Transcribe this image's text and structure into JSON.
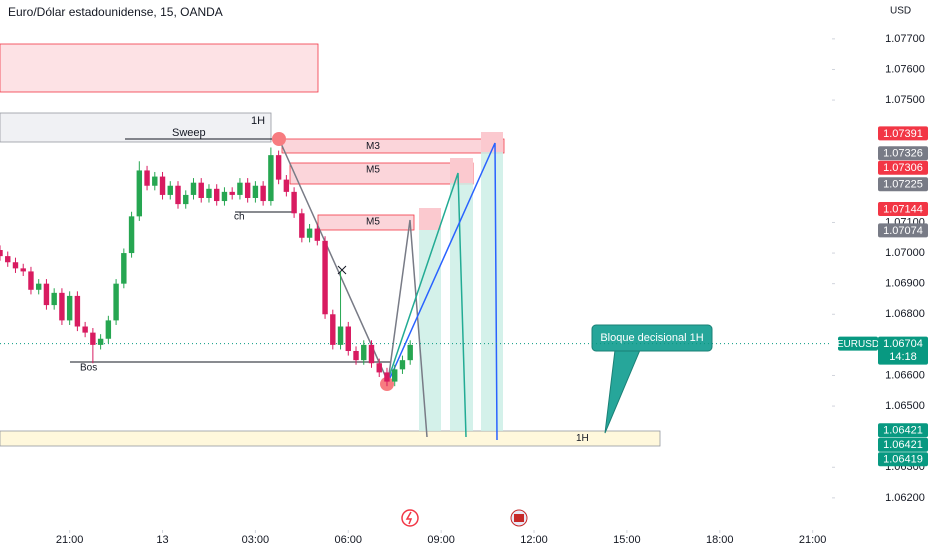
{
  "header": {
    "title": "Euro/Dólar estadounidense, 15, OANDA",
    "currency": "USD"
  },
  "chart_data": {
    "type": "candlestick",
    "up_color": "#26a651",
    "down_color": "#d81b60",
    "x": [
      -9,
      -8,
      -7,
      -6,
      -5,
      -4,
      -3,
      -2,
      -1,
      0,
      1,
      2,
      3,
      4,
      5,
      6,
      7,
      8,
      9,
      10,
      11,
      12,
      13,
      14,
      15,
      16,
      17,
      18,
      19,
      20,
      21,
      22,
      23,
      24,
      25,
      26,
      27,
      28,
      29,
      30,
      31,
      32,
      33,
      34,
      35,
      36,
      37,
      38,
      39,
      40,
      41,
      42,
      43,
      44
    ],
    "ohlc": [
      [
        1.0701,
        1.07025,
        1.06975,
        1.0699
      ],
      [
        1.0699,
        1.07005,
        1.06955,
        1.0697
      ],
      [
        1.0697,
        1.06985,
        1.06935,
        1.0695
      ],
      [
        1.0695,
        1.06965,
        1.06925,
        1.0694
      ],
      [
        1.0694,
        1.06955,
        1.06865,
        1.0688
      ],
      [
        1.0688,
        1.06915,
        1.06865,
        1.069
      ],
      [
        1.069,
        1.06915,
        1.06815,
        1.0683
      ],
      [
        1.0683,
        1.06885,
        1.06815,
        1.0687
      ],
      [
        1.0687,
        1.06885,
        1.06765,
        1.0678
      ],
      [
        1.0678,
        1.06875,
        1.06765,
        1.0686
      ],
      [
        1.0686,
        1.06875,
        1.06745,
        1.0676
      ],
      [
        1.0676,
        1.06775,
        1.06725,
        1.0674
      ],
      [
        1.0674,
        1.06755,
        1.0664,
        1.067
      ],
      [
        1.067,
        1.06735,
        1.06685,
        1.0672
      ],
      [
        1.0672,
        1.06795,
        1.06705,
        1.0678
      ],
      [
        1.0678,
        1.06915,
        1.06765,
        1.069
      ],
      [
        1.069,
        1.07015,
        1.06885,
        1.07
      ],
      [
        1.07,
        1.07135,
        1.06985,
        1.0712
      ],
      [
        1.0712,
        1.073,
        1.07105,
        1.0727
      ],
      [
        1.0727,
        1.07285,
        1.07205,
        1.0722
      ],
      [
        1.0722,
        1.07265,
        1.07205,
        1.0725
      ],
      [
        1.0725,
        1.07265,
        1.07175,
        1.0719
      ],
      [
        1.0719,
        1.07235,
        1.07175,
        1.0722
      ],
      [
        1.0722,
        1.07235,
        1.07145,
        1.0716
      ],
      [
        1.0716,
        1.07205,
        1.07145,
        1.0719
      ],
      [
        1.0719,
        1.07245,
        1.07175,
        1.0723
      ],
      [
        1.0723,
        1.07245,
        1.07165,
        1.0718
      ],
      [
        1.0718,
        1.07225,
        1.07165,
        1.0721
      ],
      [
        1.0721,
        1.07225,
        1.07155,
        1.0717
      ],
      [
        1.0717,
        1.07215,
        1.07155,
        1.072
      ],
      [
        1.072,
        1.07215,
        1.07175,
        1.0719
      ],
      [
        1.0719,
        1.07245,
        1.07175,
        1.0723
      ],
      [
        1.0723,
        1.07245,
        1.07165,
        1.0718
      ],
      [
        1.0718,
        1.07235,
        1.07165,
        1.0722
      ],
      [
        1.0722,
        1.07235,
        1.07155,
        1.0717
      ],
      [
        1.0717,
        1.07345,
        1.07155,
        1.0732
      ],
      [
        1.0732,
        1.07335,
        1.07225,
        1.0724
      ],
      [
        1.0724,
        1.07255,
        1.07185,
        1.072
      ],
      [
        1.072,
        1.07215,
        1.07115,
        1.0713
      ],
      [
        1.0713,
        1.07145,
        1.07035,
        1.0705
      ],
      [
        1.0705,
        1.07095,
        1.07035,
        1.0708
      ],
      [
        1.0708,
        1.07095,
        1.07025,
        1.0704
      ],
      [
        1.0704,
        1.07055,
        1.06785,
        1.068
      ],
      [
        1.068,
        1.06815,
        1.06685,
        1.067
      ],
      [
        1.067,
        1.0694,
        1.06685,
        1.0676
      ],
      [
        1.0676,
        1.06775,
        1.06665,
        1.0668
      ],
      [
        1.0668,
        1.06695,
        1.06635,
        1.0665
      ],
      [
        1.0665,
        1.06715,
        1.06635,
        1.067
      ],
      [
        1.067,
        1.06715,
        1.06625,
        1.0664
      ],
      [
        1.0664,
        1.06655,
        1.06595,
        1.0661
      ],
      [
        1.0661,
        1.06625,
        1.06565,
        1.0658
      ],
      [
        1.0658,
        1.06635,
        1.06565,
        1.0662
      ],
      [
        1.0662,
        1.06665,
        1.06605,
        1.0665
      ],
      [
        1.0665,
        1.06715,
        1.06635,
        1.067
      ]
    ],
    "xlim": [
      -9,
      98.5
    ],
    "xticks": [
      {
        "value": 0,
        "label": "21:00"
      },
      {
        "value": 12,
        "label": "13"
      },
      {
        "value": 24,
        "label": "03:00"
      },
      {
        "value": 36,
        "label": "06:00"
      },
      {
        "value": 48,
        "label": "09:00"
      },
      {
        "value": 60,
        "label": "12:00"
      },
      {
        "value": 72,
        "label": "15:00"
      },
      {
        "value": 84,
        "label": "18:00"
      },
      {
        "value": 96,
        "label": "21:00"
      }
    ],
    "ylim": [
      1.06095,
      1.07827
    ],
    "yticks": [
      {
        "value": 1.077,
        "label": "1.07700"
      },
      {
        "value": 1.076,
        "label": "1.07600"
      },
      {
        "value": 1.075,
        "label": "1.07500"
      },
      {
        "value": 1.071,
        "label": "1.07100"
      },
      {
        "value": 1.07,
        "label": "1.07000"
      },
      {
        "value": 1.069,
        "label": "1.06900"
      },
      {
        "value": 1.068,
        "label": "1.06800"
      },
      {
        "value": 1.066,
        "label": "1.06600"
      },
      {
        "value": 1.065,
        "label": "1.06500"
      },
      {
        "value": 1.063,
        "label": "1.06300"
      },
      {
        "value": 1.062,
        "label": "1.06200"
      }
    ],
    "grid": false,
    "price_tags": [
      {
        "value": 1.07391,
        "color": "#f23645"
      },
      {
        "value": 1.07326,
        "color": "#787b86"
      },
      {
        "value": 1.07306,
        "color": "#f23645"
      },
      {
        "value": 1.07225,
        "color": "#787b86"
      },
      {
        "value": 1.07144,
        "color": "#f23645"
      },
      {
        "value": 1.07074,
        "color": "#787b86"
      },
      {
        "value": 1.06421,
        "color": "#089981"
      },
      {
        "value": 1.06421,
        "color": "#089981"
      },
      {
        "value": 1.06419,
        "color": "#089981"
      }
    ],
    "last": {
      "symbol": "EURUSD",
      "value": 1.06704,
      "countdown": "14:18",
      "color": "#089981"
    },
    "annotations": [
      "Sweep",
      "ch",
      "Bos",
      "M3",
      "M5",
      "M5",
      "1H",
      "1H",
      "Bloque decisional 1H"
    ]
  }
}
